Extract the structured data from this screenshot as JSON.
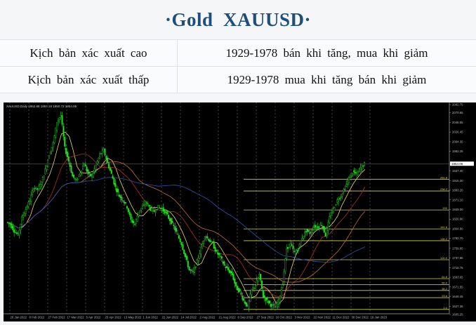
{
  "header": {
    "title": "·Gold  XAUUSD·"
  },
  "scenarios": [
    {
      "label": "Kịch bản xác xuất cao",
      "value": "1929-1978 bán khi tăng, mua khi giảm"
    },
    {
      "label": "Kịch bản xác xuất thấp",
      "value": "1929-1978 mua khi tăng bán khi giảm"
    }
  ],
  "chart_data": {
    "type": "candlestick",
    "symbol_info": "XAUUSD,Daily  1952.88 1957.19 1950.72 1954.06",
    "current_price": "1954.06",
    "ylim": [
      1605.25,
      2092.75
    ],
    "y_ticks": [
      "2092.75",
      "2070.65",
      "2048.55",
      "2026.45",
      "2004.35",
      "1982.25",
      "1937.40",
      "1915.30",
      "1893.20",
      "1871.10",
      "1849.00",
      "1826.90",
      "1804.80",
      "1782.70",
      "1759.95",
      "1737.85",
      "1715.75",
      "1693.65",
      "1671.55",
      "1649.45",
      "1627.35",
      "1605.25"
    ],
    "x_ticks": [
      "20 Jan 2022",
      "8 Feb 2022",
      "27 Feb 2022",
      "17 Mar 2022",
      "5 Apr 2022",
      "25 Apr 2022",
      "13 May 2022",
      "1 Jun 2022",
      "22 Jun 2022",
      "14 Jul 2022",
      "2 Aug 2022",
      "21 Aug 2022",
      "8 Sep 2022",
      "27 Sep 2022",
      "16 Oct 2022",
      "3 Nov 2022",
      "22 Nov 2022",
      "11 Dec 2022",
      "30 Dec 2022",
      "19 Jan 2023"
    ],
    "closes": [
      1820,
      1815,
      1800,
      1790,
      1830,
      1850,
      1870,
      1900,
      1895,
      1910,
      1940,
      1975,
      2000,
      2050,
      2065,
      1990,
      1960,
      1925,
      1915,
      1935,
      1955,
      1930,
      1925,
      1950,
      1975,
      1985,
      1955,
      1930,
      1900,
      1880,
      1870,
      1855,
      1825,
      1815,
      1845,
      1855,
      1865,
      1850,
      1845,
      1855,
      1850,
      1840,
      1825,
      1810,
      1790,
      1770,
      1740,
      1710,
      1705,
      1730,
      1760,
      1790,
      1780,
      1770,
      1750,
      1740,
      1720,
      1710,
      1700,
      1670,
      1660,
      1640,
      1625,
      1665,
      1675,
      1700,
      1650,
      1640,
      1630,
      1625,
      1640,
      1680,
      1760,
      1770,
      1750,
      1760,
      1785,
      1800,
      1795,
      1810,
      1810,
      1815,
      1790,
      1830,
      1850,
      1870,
      1880,
      1900,
      1920,
      1935,
      1930,
      1945,
      1954
    ],
    "fibonacci": {
      "levels": [
        {
          "label": "261.8",
          "price": 1918.5
        },
        {
          "label": "238.2",
          "price": 1891.5
        },
        {
          "label": "200",
          "price": 1848
        },
        {
          "label": "161.8",
          "price": 1804.5
        },
        {
          "label": "138.2",
          "price": 1777.5
        },
        {
          "label": "100.0",
          "price": 1734
        },
        {
          "label": "61.8",
          "price": 1690.5
        },
        {
          "label": "50.0",
          "price": 1677
        },
        {
          "label": "38.2",
          "price": 1663.5
        },
        {
          "label": "23.6",
          "price": 1647
        },
        {
          "label": "0.0",
          "price": 1620
        }
      ],
      "color": "#d8d060"
    },
    "moving_averages": [
      {
        "period": 4,
        "color": "#e8d870"
      },
      {
        "period": 10,
        "color": "#b03020"
      },
      {
        "period": 20,
        "color": "#c07030"
      },
      {
        "period": 40,
        "color": "#3050b0"
      }
    ],
    "colors": {
      "up": "#22dd22",
      "down": "#22dd22",
      "background": "#000000",
      "grid": "#888888",
      "axis_text": "#bbbbbb"
    }
  }
}
